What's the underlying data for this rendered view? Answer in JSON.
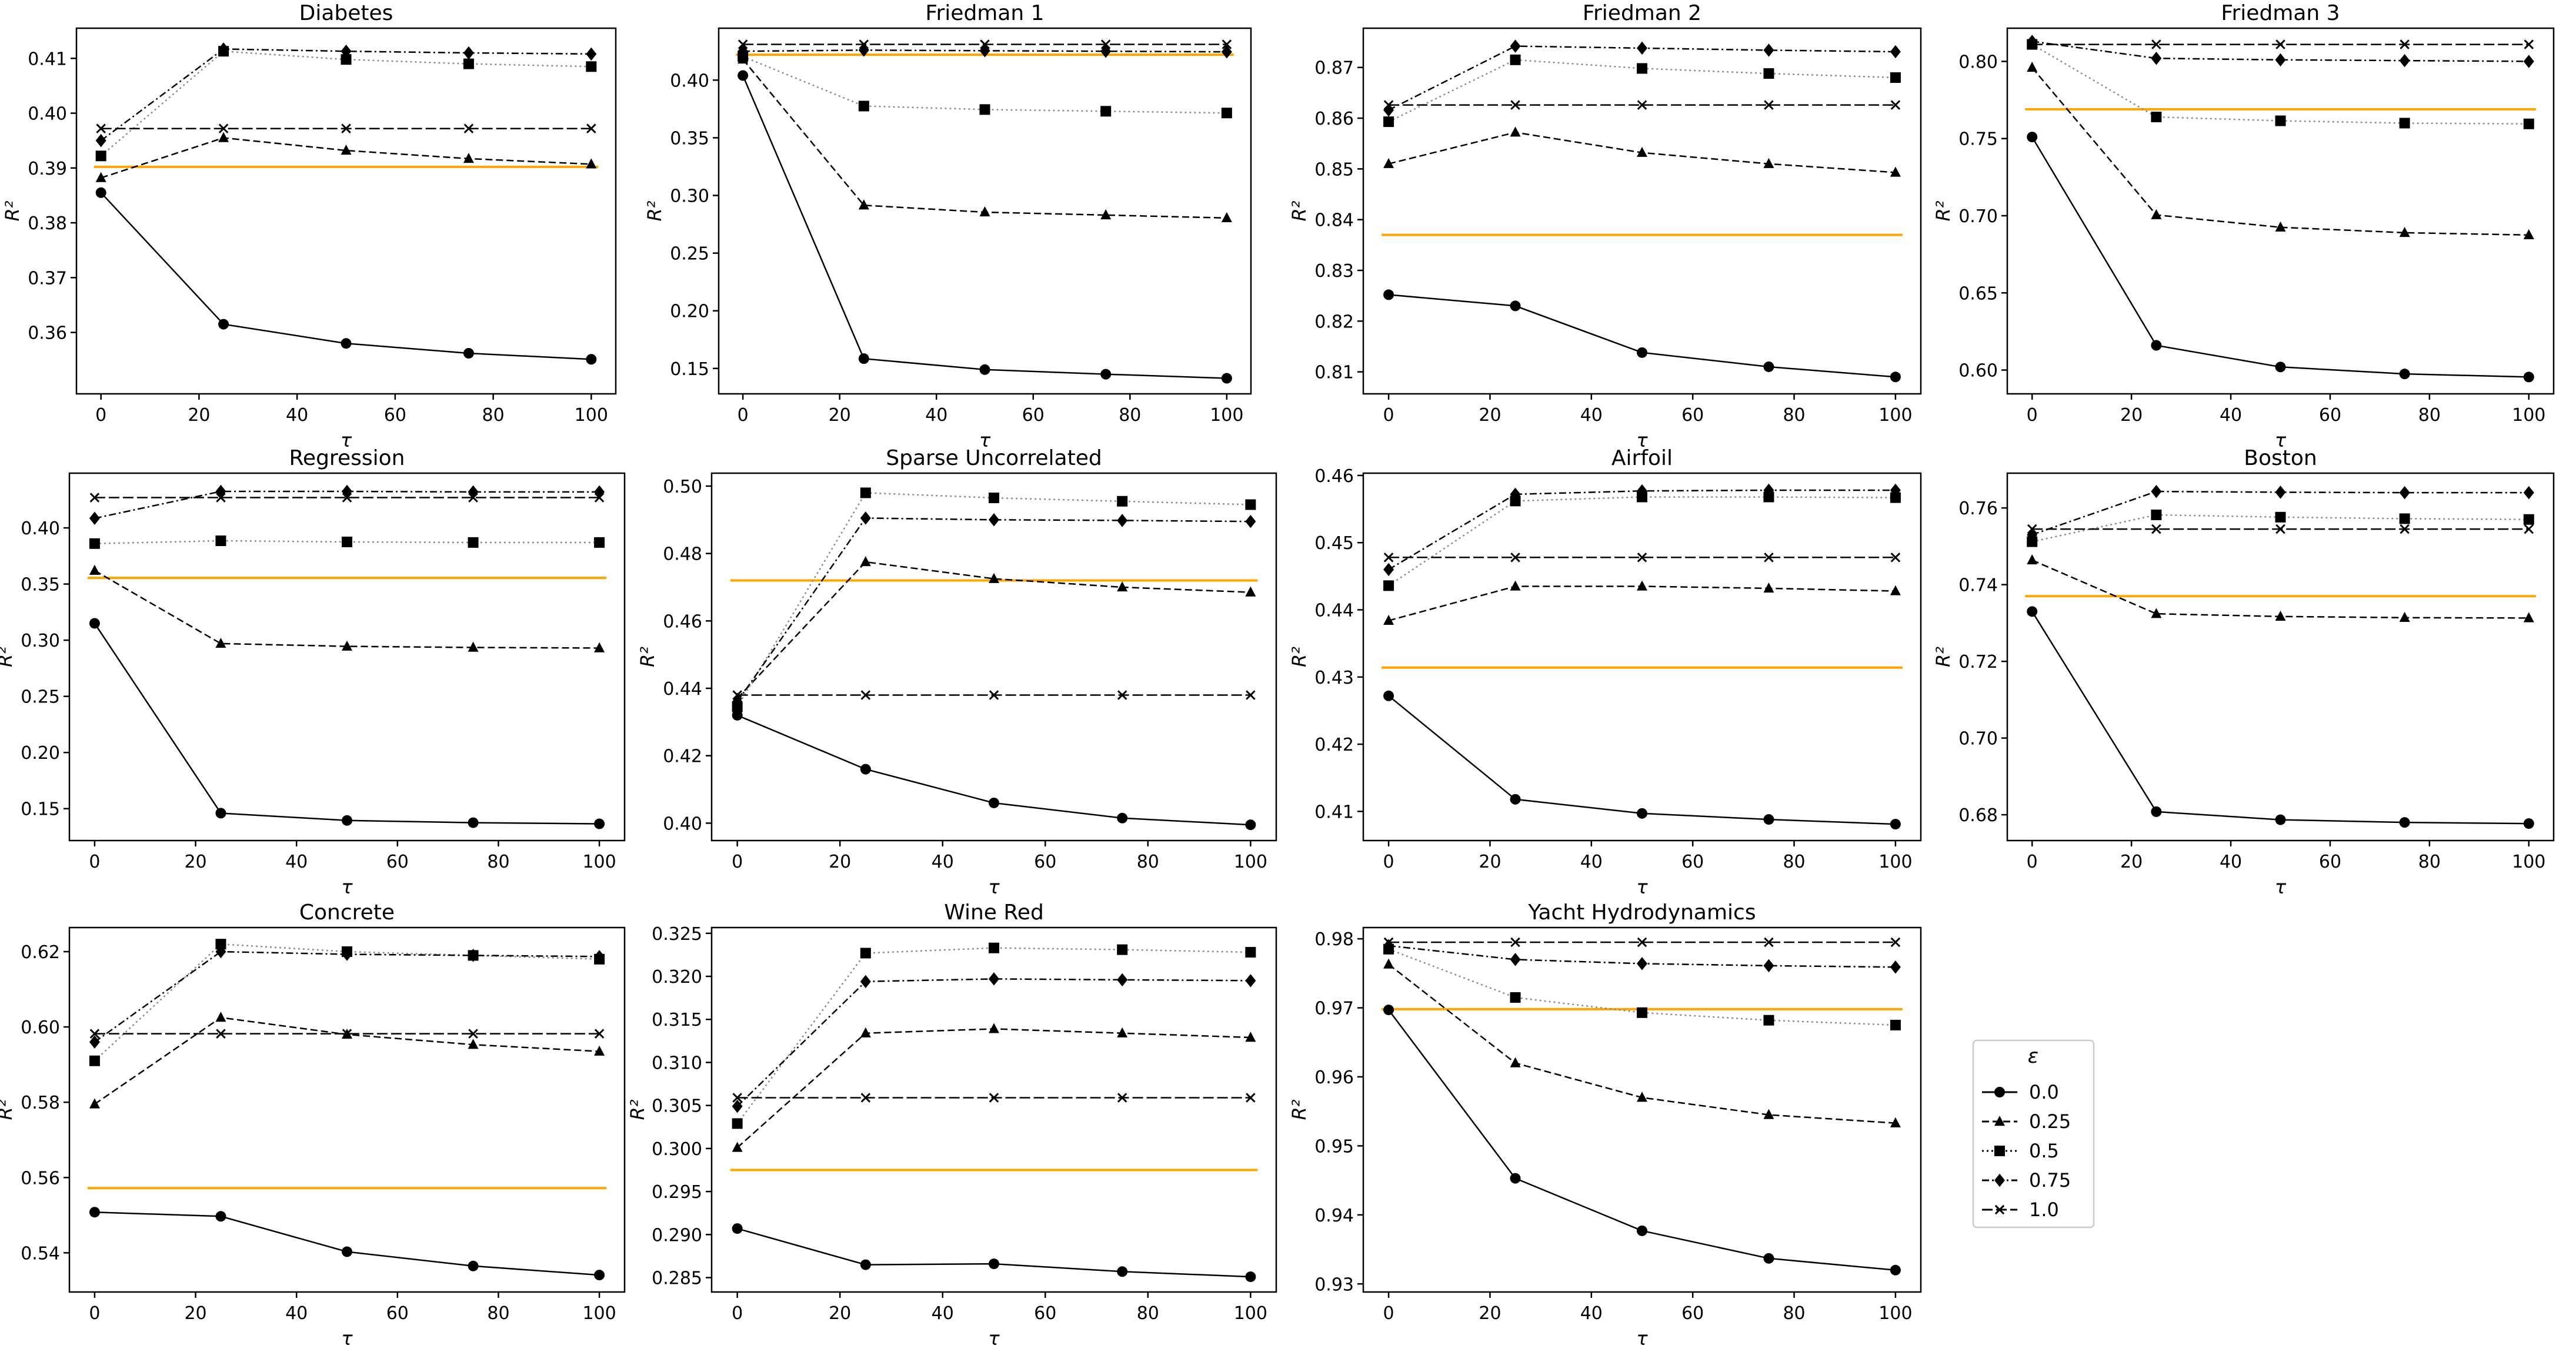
{
  "figure": {
    "legend": {
      "title": "ε",
      "entries": [
        {
          "label": "0.0",
          "marker": "circle",
          "dash": "solid",
          "color": "#000000"
        },
        {
          "label": "0.25",
          "marker": "triangle",
          "dash": "dashed",
          "color": "#000000"
        },
        {
          "label": "0.5",
          "marker": "square",
          "dash": "dotted",
          "color": "#000000"
        },
        {
          "label": "0.75",
          "marker": "diamond",
          "dash": "dashdot",
          "color": "#000000"
        },
        {
          "label": "1.0",
          "marker": "x",
          "dash": "longdash",
          "color": "#000000"
        }
      ]
    },
    "colors": {
      "baseline": "#FFA500",
      "series_dark": "#000000",
      "series_grey": "#8c8c8c",
      "frame": "#000000"
    }
  },
  "chart_data": [
    {
      "type": "line",
      "title": "Diabetes",
      "xlabel": "τ",
      "ylabel": "R²",
      "x": [
        0,
        25,
        50,
        75,
        100
      ],
      "xlim": [
        -5,
        105
      ],
      "xticks": [
        0,
        20,
        40,
        60,
        80,
        100
      ],
      "ylim": [
        0.3488,
        0.4155
      ],
      "yticks": [
        "0.36",
        "0.37",
        "0.38",
        "0.39",
        "0.40",
        "0.41"
      ],
      "ytick_values": [
        0.36,
        0.37,
        0.38,
        0.39,
        0.4,
        0.41
      ],
      "baseline": 0.3902,
      "series": [
        {
          "name": "0.0",
          "values": [
            0.3855,
            0.3615,
            0.358,
            0.3562,
            0.3551
          ]
        },
        {
          "name": "0.25",
          "values": [
            0.3882,
            0.3955,
            0.3932,
            0.3917,
            0.3907
          ]
        },
        {
          "name": "0.5",
          "values": [
            0.3922,
            0.4113,
            0.4098,
            0.409,
            0.4085
          ]
        },
        {
          "name": "0.75",
          "values": [
            0.395,
            0.4117,
            0.4113,
            0.411,
            0.4108
          ]
        },
        {
          "name": "1.0",
          "values": [
            0.3972,
            0.3972,
            0.3972,
            0.3972,
            0.3972
          ]
        }
      ]
    },
    {
      "type": "line",
      "title": "Friedman 1",
      "xlabel": "τ",
      "ylabel": "R²",
      "x": [
        0,
        25,
        50,
        75,
        100
      ],
      "xlim": [
        -5,
        105
      ],
      "xticks": [
        0,
        20,
        40,
        60,
        80,
        100
      ],
      "ylim": [
        0.128,
        0.445
      ],
      "yticks": [
        "0.15",
        "0.20",
        "0.25",
        "0.30",
        "0.35",
        "0.40"
      ],
      "ytick_values": [
        0.15,
        0.2,
        0.25,
        0.3,
        0.35,
        0.4
      ],
      "baseline": 0.422,
      "series": [
        {
          "name": "0.0",
          "values": [
            0.404,
            0.1585,
            0.149,
            0.145,
            0.1415
          ]
        },
        {
          "name": "0.25",
          "values": [
            0.418,
            0.2915,
            0.2855,
            0.283,
            0.2805
          ]
        },
        {
          "name": "0.5",
          "values": [
            0.4205,
            0.3775,
            0.3745,
            0.373,
            0.3715
          ]
        },
        {
          "name": "0.75",
          "values": [
            0.425,
            0.426,
            0.4255,
            0.425,
            0.4245
          ]
        },
        {
          "name": "1.0",
          "values": [
            0.431,
            0.431,
            0.431,
            0.431,
            0.431
          ]
        }
      ]
    },
    {
      "type": "line",
      "title": "Friedman 2",
      "xlabel": "τ",
      "ylabel": "R²",
      "x": [
        0,
        25,
        50,
        75,
        100
      ],
      "xlim": [
        -5,
        105
      ],
      "xticks": [
        0,
        20,
        40,
        60,
        80,
        100
      ],
      "ylim": [
        0.80567,
        0.87773
      ],
      "yticks": [
        "0.81",
        "0.82",
        "0.83",
        "0.84",
        "0.85",
        "0.86",
        "0.87"
      ],
      "ytick_values": [
        0.81,
        0.82,
        0.83,
        0.84,
        0.85,
        0.86,
        0.87
      ],
      "baseline": 0.837,
      "series": [
        {
          "name": "0.0",
          "values": [
            0.8252,
            0.823,
            0.8138,
            0.811,
            0.809
          ]
        },
        {
          "name": "0.25",
          "values": [
            0.851,
            0.8572,
            0.8532,
            0.851,
            0.8493
          ]
        },
        {
          "name": "0.5",
          "values": [
            0.8593,
            0.8715,
            0.8698,
            0.8688,
            0.868
          ]
        },
        {
          "name": "0.75",
          "values": [
            0.8616,
            0.8742,
            0.8738,
            0.8734,
            0.8731
          ]
        },
        {
          "name": "1.0",
          "values": [
            0.8626,
            0.8626,
            0.8626,
            0.8626,
            0.8626
          ]
        }
      ]
    },
    {
      "type": "line",
      "title": "Friedman 3",
      "xlabel": "τ",
      "ylabel": "R²",
      "x": [
        0,
        25,
        50,
        75,
        100
      ],
      "xlim": [
        -5,
        105
      ],
      "xticks": [
        0,
        20,
        40,
        60,
        80,
        100
      ],
      "ylim": [
        0.5846,
        0.8215
      ],
      "yticks": [
        "0.60",
        "0.65",
        "0.70",
        "0.75",
        "0.80"
      ],
      "ytick_values": [
        0.6,
        0.65,
        0.7,
        0.75,
        0.8
      ],
      "baseline": 0.769,
      "series": [
        {
          "name": "0.0",
          "values": [
            0.751,
            0.616,
            0.602,
            0.5975,
            0.5955
          ]
        },
        {
          "name": "0.25",
          "values": [
            0.796,
            0.7005,
            0.6925,
            0.689,
            0.6875
          ]
        },
        {
          "name": "0.5",
          "values": [
            0.811,
            0.764,
            0.7615,
            0.76,
            0.7595
          ]
        },
        {
          "name": "0.75",
          "values": [
            0.813,
            0.802,
            0.801,
            0.8005,
            0.8
          ]
        },
        {
          "name": "1.0",
          "values": [
            0.811,
            0.811,
            0.811,
            0.811,
            0.811
          ]
        }
      ]
    },
    {
      "type": "line",
      "title": "Regression",
      "xlabel": "τ",
      "ylabel": "R²",
      "x": [
        0,
        25,
        50,
        75,
        100
      ],
      "xlim": [
        -5,
        105
      ],
      "xticks": [
        0,
        20,
        40,
        60,
        80,
        100
      ],
      "ylim": [
        0.1216,
        0.4487
      ],
      "yticks": [
        "0.15",
        "0.20",
        "0.25",
        "0.30",
        "0.35",
        "0.40"
      ],
      "ytick_values": [
        0.15,
        0.2,
        0.25,
        0.3,
        0.35,
        0.4
      ],
      "baseline": 0.3555,
      "series": [
        {
          "name": "0.0",
          "values": [
            0.315,
            0.146,
            0.1395,
            0.1375,
            0.1365
          ]
        },
        {
          "name": "0.25",
          "values": [
            0.362,
            0.297,
            0.2945,
            0.2935,
            0.293
          ]
        },
        {
          "name": "0.5",
          "values": [
            0.386,
            0.3885,
            0.3875,
            0.387,
            0.387
          ]
        },
        {
          "name": "0.75",
          "values": [
            0.4085,
            0.4325,
            0.4325,
            0.432,
            0.432
          ]
        },
        {
          "name": "1.0",
          "values": [
            0.427,
            0.427,
            0.427,
            0.427,
            0.427
          ]
        }
      ]
    },
    {
      "type": "line",
      "title": "Sparse Uncorrelated",
      "xlabel": "τ",
      "ylabel": "R²",
      "x": [
        0,
        25,
        50,
        75,
        100
      ],
      "xlim": [
        -5,
        105
      ],
      "xticks": [
        0,
        20,
        40,
        60,
        80,
        100
      ],
      "ylim": [
        0.39483,
        0.50383
      ],
      "yticks": [
        "0.40",
        "0.42",
        "0.44",
        "0.46",
        "0.48",
        "0.50"
      ],
      "ytick_values": [
        0.4,
        0.42,
        0.44,
        0.46,
        0.48,
        0.5
      ],
      "baseline": 0.472,
      "series": [
        {
          "name": "0.0",
          "values": [
            0.432,
            0.416,
            0.406,
            0.4015,
            0.3995
          ]
        },
        {
          "name": "0.25",
          "values": [
            0.437,
            0.4775,
            0.4725,
            0.47,
            0.4685
          ]
        },
        {
          "name": "0.5",
          "values": [
            0.4345,
            0.498,
            0.4965,
            0.4955,
            0.4945
          ]
        },
        {
          "name": "0.75",
          "values": [
            0.436,
            0.4905,
            0.49,
            0.4898,
            0.4895
          ]
        },
        {
          "name": "1.0",
          "values": [
            0.438,
            0.438,
            0.438,
            0.438,
            0.438
          ]
        }
      ]
    },
    {
      "type": "line",
      "title": "Airfoil",
      "xlabel": "τ",
      "ylabel": "R²",
      "x": [
        0,
        25,
        50,
        75,
        100
      ],
      "xlim": [
        -5,
        105
      ],
      "xticks": [
        0,
        20,
        40,
        60,
        80,
        100
      ],
      "ylim": [
        0.40566,
        0.46034
      ],
      "yticks": [
        "0.41",
        "0.42",
        "0.43",
        "0.44",
        "0.45",
        "0.46"
      ],
      "ytick_values": [
        0.41,
        0.42,
        0.43,
        0.44,
        0.45,
        0.46
      ],
      "baseline": 0.4314,
      "series": [
        {
          "name": "0.0",
          "values": [
            0.4272,
            0.4118,
            0.4097,
            0.4088,
            0.4081
          ]
        },
        {
          "name": "0.25",
          "values": [
            0.4384,
            0.4435,
            0.4435,
            0.4432,
            0.4428
          ]
        },
        {
          "name": "0.5",
          "values": [
            0.4436,
            0.4562,
            0.4568,
            0.4568,
            0.4567
          ]
        },
        {
          "name": "0.75",
          "values": [
            0.446,
            0.4572,
            0.4577,
            0.4578,
            0.4578
          ]
        },
        {
          "name": "1.0",
          "values": [
            0.4478,
            0.4478,
            0.4478,
            0.4478,
            0.4478
          ]
        }
      ]
    },
    {
      "type": "line",
      "title": "Boston",
      "xlabel": "τ",
      "ylabel": "R²",
      "x": [
        0,
        25,
        50,
        75,
        100
      ],
      "xlim": [
        -5,
        105
      ],
      "xticks": [
        0,
        20,
        40,
        60,
        80,
        100
      ],
      "ylim": [
        0.67327,
        0.76907
      ],
      "yticks": [
        "0.68",
        "0.70",
        "0.72",
        "0.74",
        "0.76"
      ],
      "ytick_values": [
        0.68,
        0.7,
        0.72,
        0.74,
        0.76
      ],
      "baseline": 0.737,
      "series": [
        {
          "name": "0.0",
          "values": [
            0.733,
            0.6808,
            0.6787,
            0.678,
            0.6777
          ]
        },
        {
          "name": "0.25",
          "values": [
            0.7464,
            0.7324,
            0.7317,
            0.7314,
            0.7313
          ]
        },
        {
          "name": "0.5",
          "values": [
            0.7512,
            0.7582,
            0.7576,
            0.7572,
            0.757
          ]
        },
        {
          "name": "0.75",
          "values": [
            0.753,
            0.7643,
            0.7641,
            0.764,
            0.764
          ]
        },
        {
          "name": "1.0",
          "values": [
            0.7545,
            0.7545,
            0.7545,
            0.7545,
            0.7545
          ]
        }
      ]
    },
    {
      "type": "line",
      "title": "Concrete",
      "xlabel": "τ",
      "ylabel": "R²",
      "x": [
        0,
        25,
        50,
        75,
        100
      ],
      "xlim": [
        -5,
        105
      ],
      "xticks": [
        0,
        20,
        40,
        60,
        80,
        100
      ],
      "ylim": [
        0.5296,
        0.6264
      ],
      "yticks": [
        "0.54",
        "0.56",
        "0.58",
        "0.60",
        "0.62"
      ],
      "ytick_values": [
        0.54,
        0.56,
        0.58,
        0.6,
        0.62
      ],
      "baseline": 0.5572,
      "series": [
        {
          "name": "0.0",
          "values": [
            0.5508,
            0.5497,
            0.5403,
            0.5365,
            0.5341
          ]
        },
        {
          "name": "0.25",
          "values": [
            0.5795,
            0.6025,
            0.598,
            0.5953,
            0.5935
          ]
        },
        {
          "name": "0.5",
          "values": [
            0.591,
            0.622,
            0.62,
            0.619,
            0.618
          ]
        },
        {
          "name": "0.75",
          "values": [
            0.596,
            0.62,
            0.6193,
            0.619,
            0.6187
          ]
        },
        {
          "name": "1.0",
          "values": [
            0.5982,
            0.5982,
            0.5982,
            0.5982,
            0.5982
          ]
        }
      ]
    },
    {
      "type": "line",
      "title": "Wine Red",
      "xlabel": "τ",
      "ylabel": "R²",
      "x": [
        0,
        25,
        50,
        75,
        100
      ],
      "xlim": [
        -5,
        105
      ],
      "xticks": [
        0,
        20,
        40,
        60,
        80,
        100
      ],
      "ylim": [
        0.28333,
        0.32567
      ],
      "yticks": [
        "0.285",
        "0.290",
        "0.295",
        "0.300",
        "0.305",
        "0.310",
        "0.315",
        "0.320",
        "0.325"
      ],
      "ytick_values": [
        0.285,
        0.29,
        0.295,
        0.3,
        0.305,
        0.31,
        0.315,
        0.32,
        0.325
      ],
      "baseline": 0.2975,
      "series": [
        {
          "name": "0.0",
          "values": [
            0.2907,
            0.2865,
            0.2866,
            0.2857,
            0.2851
          ]
        },
        {
          "name": "0.25",
          "values": [
            0.3001,
            0.3134,
            0.3139,
            0.3134,
            0.3129
          ]
        },
        {
          "name": "0.5",
          "values": [
            0.3029,
            0.3227,
            0.3233,
            0.3231,
            0.3228
          ]
        },
        {
          "name": "0.75",
          "values": [
            0.3049,
            0.3194,
            0.3197,
            0.3196,
            0.3195
          ]
        },
        {
          "name": "1.0",
          "values": [
            0.3059,
            0.3059,
            0.3059,
            0.3059,
            0.3059
          ]
        }
      ]
    },
    {
      "type": "line",
      "title": "Yacht Hydrodynamics",
      "xlabel": "τ",
      "ylabel": "R²",
      "x": [
        0,
        25,
        50,
        75,
        100
      ],
      "xlim": [
        -5,
        105
      ],
      "xticks": [
        0,
        20,
        40,
        60,
        80,
        100
      ],
      "ylim": [
        0.92883,
        0.98163
      ],
      "yticks": [
        "0.93",
        "0.94",
        "0.95",
        "0.96",
        "0.97",
        "0.98"
      ],
      "ytick_values": [
        0.93,
        0.94,
        0.95,
        0.96,
        0.97,
        0.98
      ],
      "baseline": 0.9698,
      "series": [
        {
          "name": "0.0",
          "values": [
            0.9697,
            0.9453,
            0.9377,
            0.9337,
            0.932
          ]
        },
        {
          "name": "0.25",
          "values": [
            0.9763,
            0.962,
            0.957,
            0.9545,
            0.9533
          ]
        },
        {
          "name": "0.5",
          "values": [
            0.9785,
            0.9715,
            0.9693,
            0.9682,
            0.9675
          ]
        },
        {
          "name": "0.75",
          "values": [
            0.979,
            0.977,
            0.9764,
            0.9761,
            0.9759
          ]
        },
        {
          "name": "1.0",
          "values": [
            0.9795,
            0.9795,
            0.9795,
            0.9795,
            0.9795
          ]
        }
      ]
    }
  ]
}
